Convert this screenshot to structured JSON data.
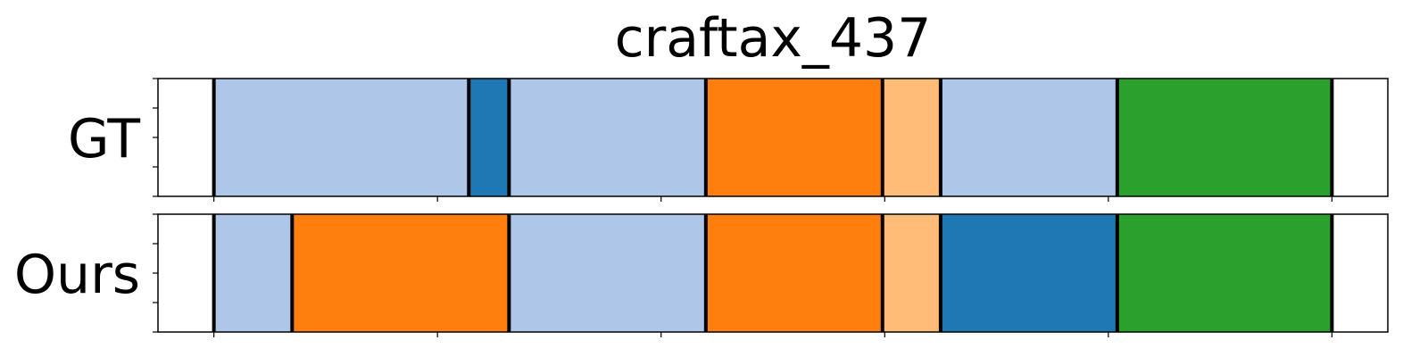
{
  "chart_data": {
    "type": "bar",
    "title": "craftax_437",
    "x_range": [
      0,
      55
    ],
    "colors": {
      "light_blue": "#aec7e8",
      "dark_blue": "#1f77b4",
      "orange": "#ff7f0e",
      "light_orange": "#ffbb78",
      "green": "#2ca02c"
    },
    "rows": [
      {
        "label": "GT",
        "segments": [
          {
            "start": 2.5,
            "end": 13.9,
            "color": "light_blue"
          },
          {
            "start": 13.9,
            "end": 15.7,
            "color": "dark_blue"
          },
          {
            "start": 15.7,
            "end": 24.5,
            "color": "light_blue"
          },
          {
            "start": 24.5,
            "end": 32.4,
            "color": "orange"
          },
          {
            "start": 32.4,
            "end": 35.0,
            "color": "light_orange"
          },
          {
            "start": 35.0,
            "end": 42.9,
            "color": "light_blue"
          },
          {
            "start": 42.9,
            "end": 52.5,
            "color": "green"
          }
        ]
      },
      {
        "label": "Ours",
        "segments": [
          {
            "start": 2.5,
            "end": 6.0,
            "color": "light_blue"
          },
          {
            "start": 6.0,
            "end": 15.7,
            "color": "orange"
          },
          {
            "start": 15.7,
            "end": 24.5,
            "color": "light_blue"
          },
          {
            "start": 24.5,
            "end": 32.4,
            "color": "orange"
          },
          {
            "start": 32.4,
            "end": 35.0,
            "color": "light_orange"
          },
          {
            "start": 35.0,
            "end": 42.9,
            "color": "dark_blue"
          },
          {
            "start": 42.9,
            "end": 52.5,
            "color": "green"
          }
        ]
      }
    ],
    "x_ticks": [
      2.5,
      12.5,
      22.5,
      32.5,
      42.5,
      52.5
    ],
    "y_ticks_per_row": 5,
    "grid": false,
    "legend": "none"
  }
}
